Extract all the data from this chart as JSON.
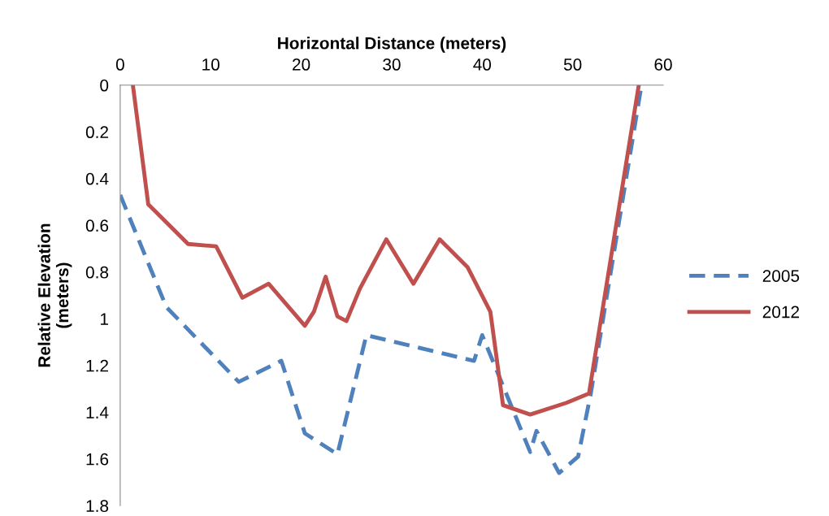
{
  "chart_data": {
    "type": "line",
    "xlabel": "Horizontal Distance (meters)",
    "ylabel": "Relative Elevation\n(meters)",
    "xlim": [
      0,
      60
    ],
    "xticks": [
      0,
      10,
      20,
      30,
      40,
      50,
      60
    ],
    "ylim": [
      1.8,
      0
    ],
    "yticks": [
      0,
      0.2,
      0.4,
      0.6,
      0.8,
      1,
      1.2,
      1.4,
      1.6,
      1.8
    ],
    "grid": false,
    "legend": "right",
    "marker": "none",
    "series": [
      {
        "name": "2005",
        "color": "#4f81bd",
        "line_style": "dashed",
        "x": [
          0,
          5.1,
          13.1,
          17.8,
          20.4,
          24,
          27.2,
          39.1,
          40,
          45.3,
          46,
          48.5,
          50.6,
          52,
          57.6
        ],
        "values": [
          0.47,
          0.95,
          1.27,
          1.18,
          1.49,
          1.58,
          1.07,
          1.18,
          1.07,
          1.57,
          1.48,
          1.66,
          1.59,
          1.32,
          0
        ]
      },
      {
        "name": "2012",
        "color": "#c0504d",
        "line_style": "solid",
        "x": [
          1.4,
          3.1,
          7.5,
          10.6,
          13.5,
          16.4,
          20.4,
          21.4,
          22.7,
          24,
          25,
          26.5,
          29.4,
          32.4,
          35.3,
          38.4,
          40.9,
          42.3,
          45.3,
          49.3,
          51.8,
          57.3
        ],
        "values": [
          0,
          0.51,
          0.68,
          0.69,
          0.91,
          0.85,
          1.03,
          0.97,
          0.82,
          0.99,
          1.01,
          0.87,
          0.66,
          0.85,
          0.66,
          0.78,
          0.97,
          1.37,
          1.41,
          1.36,
          1.32,
          0
        ]
      }
    ]
  }
}
